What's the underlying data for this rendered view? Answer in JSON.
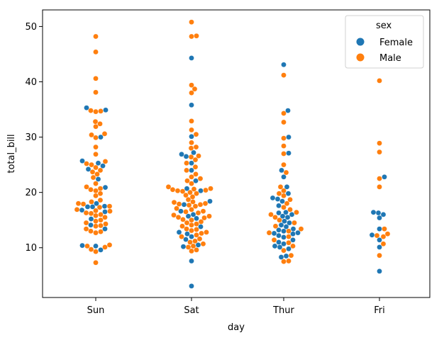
{
  "chart_data": {
    "type": "scatter",
    "subtype": "swarm",
    "xlabel": "day",
    "ylabel": "total_bill",
    "categories": [
      "Sun",
      "Sat",
      "Thur",
      "Fri"
    ],
    "ylim": [
      1.0,
      53.0
    ],
    "yticks": [
      10,
      20,
      30,
      40,
      50
    ],
    "grid": false,
    "legend": {
      "title": "sex",
      "position": "top-right",
      "entries": [
        {
          "name": "Female",
          "color": "#1f77b4"
        },
        {
          "name": "Male",
          "color": "#ff7f0e"
        }
      ]
    },
    "series": [
      {
        "name": "Female",
        "color": "#1f77b4",
        "values": {
          "Sun": [
            35.3,
            34.9,
            30.0,
            25.3,
            25.7,
            24.8,
            24.2,
            22.4,
            20.9,
            18.0,
            17.5,
            17.4,
            17.4,
            16.8,
            16.5,
            15.2,
            14.1,
            13.4,
            10.4,
            10.3,
            9.6
          ],
          "Sat": [
            44.3,
            35.8,
            30.1,
            27.2,
            26.9,
            26.5,
            25.3,
            24.0,
            22.1,
            20.7,
            20.3,
            18.4,
            17.8,
            16.6,
            16.0,
            15.7,
            15.3,
            13.8,
            12.8,
            12.5,
            12.0,
            11.5,
            10.5,
            10.2,
            7.6,
            3.07
          ],
          "Thur": [
            43.1,
            34.8,
            30.0,
            27.1,
            24.0,
            22.8,
            21.0,
            19.8,
            19.0,
            18.8,
            18.4,
            17.6,
            16.4,
            16.3,
            16.0,
            15.7,
            15.5,
            14.8,
            14.5,
            14.1,
            13.8,
            13.4,
            13.2,
            13.0,
            12.7,
            12.6,
            12.5,
            12.2,
            11.9,
            11.4,
            11.0,
            10.7,
            10.3,
            10.1,
            9.8,
            8.5,
            8.3
          ],
          "Fri": [
            22.8,
            16.4,
            16.3,
            16.0,
            15.4,
            13.4,
            12.3,
            11.4,
            10.1,
            5.75
          ]
        }
      },
      {
        "name": "Male",
        "color": "#ff7f0e",
        "values": {
          "Sun": [
            48.2,
            45.4,
            40.6,
            38.1,
            34.8,
            34.6,
            34.7,
            32.8,
            32.4,
            31.9,
            30.6,
            30.4,
            29.9,
            28.2,
            26.9,
            25.6,
            25.2,
            25.0,
            24.5,
            24.0,
            23.7,
            23.3,
            22.7,
            21.6,
            21.0,
            20.7,
            20.5,
            20.3,
            19.8,
            19.4,
            18.6,
            18.3,
            18.0,
            17.9,
            17.5,
            17.3,
            16.9,
            16.7,
            16.6,
            16.3,
            16.2,
            16.0,
            15.8,
            15.5,
            15.0,
            14.8,
            14.5,
            14.3,
            14.0,
            13.9,
            13.4,
            13.0,
            12.9,
            12.7,
            10.5,
            10.3,
            10.1,
            9.7,
            9.3,
            7.3
          ],
          "Sat": [
            50.8,
            48.3,
            48.2,
            39.4,
            38.7,
            38.0,
            32.9,
            31.3,
            30.5,
            29.0,
            28.2,
            28.0,
            26.6,
            26.4,
            25.9,
            25.3,
            24.6,
            24.0,
            23.3,
            22.8,
            22.5,
            22.1,
            21.6,
            21.0,
            20.7,
            20.6,
            20.5,
            20.4,
            20.3,
            20.2,
            20.0,
            19.8,
            19.5,
            19.2,
            18.7,
            18.3,
            18.2,
            18.0,
            17.9,
            17.8,
            17.7,
            17.5,
            17.1,
            16.9,
            16.6,
            16.5,
            16.3,
            15.9,
            15.7,
            15.5,
            15.4,
            15.1,
            15.0,
            14.7,
            14.5,
            14.3,
            14.1,
            13.9,
            13.4,
            13.3,
            13.1,
            12.8,
            12.6,
            12.3,
            12.0,
            11.6,
            11.2,
            11.0,
            10.7,
            10.3,
            10.1,
            9.6,
            9.4
          ],
          "Thur": [
            41.2,
            34.3,
            32.7,
            29.8,
            28.4,
            27.0,
            25.0,
            23.6,
            21.0,
            20.3,
            19.8,
            19.4,
            18.7,
            18.0,
            17.3,
            16.9,
            16.4,
            16.0,
            15.5,
            15.0,
            14.5,
            13.9,
            13.4,
            13.0,
            12.7,
            12.0,
            11.4,
            10.9,
            10.3,
            9.5,
            8.6,
            7.6,
            7.5
          ],
          "Fri": [
            40.2,
            28.9,
            27.3,
            22.5,
            21.0,
            13.4,
            12.5,
            12.0,
            12.2,
            10.7,
            8.6
          ]
        }
      }
    ]
  }
}
